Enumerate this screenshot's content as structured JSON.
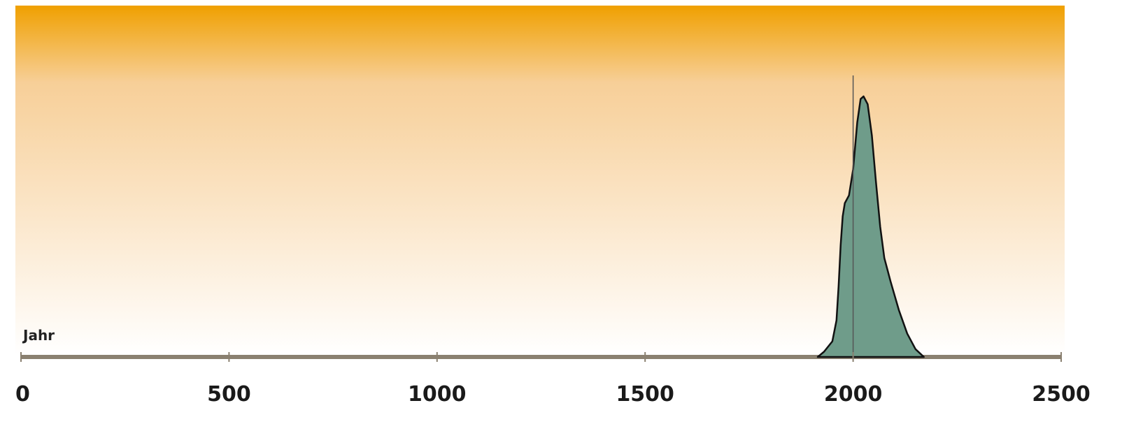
{
  "colors": {
    "gradient_top": "#f0a000",
    "gradient_mid": "#f7cf98",
    "gradient_bottom": "#ffffff",
    "fill": "#6f9c8a",
    "outline": "#111111",
    "axis": "#8a8070",
    "marker_line": "#555555"
  },
  "chart_data": {
    "type": "area",
    "title": "",
    "xlabel": "Jahr",
    "ylabel": "",
    "xlim": [
      0,
      2500
    ],
    "ylim": [
      0,
      1
    ],
    "grid": false,
    "legend": "none",
    "x_ticks": [
      0,
      500,
      1000,
      1500,
      2000,
      2500
    ],
    "x_tick_labels": [
      "0",
      "500",
      "1000",
      "1500",
      "2000",
      "2500"
    ],
    "reference_line_x": 2000,
    "series": [
      {
        "values": [
          {
            "x": 1915,
            "y": 0.0
          },
          {
            "x": 1930,
            "y": 0.02
          },
          {
            "x": 1950,
            "y": 0.06
          },
          {
            "x": 1960,
            "y": 0.14
          },
          {
            "x": 1965,
            "y": 0.27
          },
          {
            "x": 1970,
            "y": 0.43
          },
          {
            "x": 1975,
            "y": 0.54
          },
          {
            "x": 1980,
            "y": 0.59
          },
          {
            "x": 1990,
            "y": 0.62
          },
          {
            "x": 2000,
            "y": 0.72
          },
          {
            "x": 2010,
            "y": 0.9
          },
          {
            "x": 2018,
            "y": 0.99
          },
          {
            "x": 2025,
            "y": 1.0
          },
          {
            "x": 2035,
            "y": 0.97
          },
          {
            "x": 2045,
            "y": 0.85
          },
          {
            "x": 2055,
            "y": 0.67
          },
          {
            "x": 2065,
            "y": 0.5
          },
          {
            "x": 2075,
            "y": 0.38
          },
          {
            "x": 2090,
            "y": 0.29
          },
          {
            "x": 2110,
            "y": 0.18
          },
          {
            "x": 2130,
            "y": 0.09
          },
          {
            "x": 2150,
            "y": 0.03
          },
          {
            "x": 2170,
            "y": 0.0
          }
        ]
      }
    ]
  }
}
